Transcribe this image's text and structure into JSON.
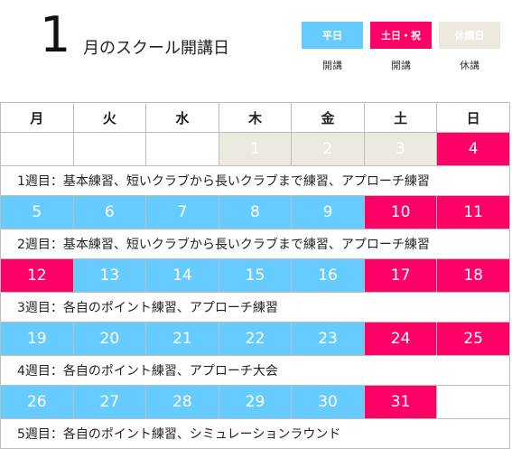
{
  "header": {
    "month": "1",
    "title": "月のスクール開講日"
  },
  "legend": [
    {
      "label": "平日",
      "caption": "開講",
      "color": "#66ccff"
    },
    {
      "label": "土日・祝",
      "caption": "開講",
      "color": "#ff0066"
    },
    {
      "label": "休講日",
      "caption": "休講",
      "color": "#ece9e0"
    }
  ],
  "calendar": {
    "weekdays": [
      "月",
      "火",
      "水",
      "木",
      "金",
      "土",
      "日"
    ],
    "weeks": [
      {
        "days": [
          {
            "d": "",
            "t": "empty"
          },
          {
            "d": "",
            "t": "empty"
          },
          {
            "d": "",
            "t": "empty"
          },
          {
            "d": "1",
            "t": "closed"
          },
          {
            "d": "2",
            "t": "closed"
          },
          {
            "d": "3",
            "t": "closed"
          },
          {
            "d": "4",
            "t": "pink"
          }
        ],
        "note": "1週目：基本練習、短いクラブから長いクラブまで練習、アプローチ練習"
      },
      {
        "days": [
          {
            "d": "5",
            "t": "blue"
          },
          {
            "d": "6",
            "t": "blue"
          },
          {
            "d": "7",
            "t": "blue"
          },
          {
            "d": "8",
            "t": "blue"
          },
          {
            "d": "9",
            "t": "blue"
          },
          {
            "d": "10",
            "t": "pink"
          },
          {
            "d": "11",
            "t": "pink"
          }
        ],
        "note": "2週目：基本練習、短いクラブから長いクラブまで練習、アプローチ練習"
      },
      {
        "days": [
          {
            "d": "12",
            "t": "pink"
          },
          {
            "d": "13",
            "t": "blue"
          },
          {
            "d": "14",
            "t": "blue"
          },
          {
            "d": "15",
            "t": "blue"
          },
          {
            "d": "16",
            "t": "blue"
          },
          {
            "d": "17",
            "t": "pink"
          },
          {
            "d": "18",
            "t": "pink"
          }
        ],
        "note": "3週目：各自のポイント練習、アプローチ練習"
      },
      {
        "days": [
          {
            "d": "19",
            "t": "blue"
          },
          {
            "d": "20",
            "t": "blue"
          },
          {
            "d": "21",
            "t": "blue"
          },
          {
            "d": "22",
            "t": "blue"
          },
          {
            "d": "23",
            "t": "blue"
          },
          {
            "d": "24",
            "t": "pink"
          },
          {
            "d": "25",
            "t": "pink"
          }
        ],
        "note": "4週目：各自のポイント練習、アプローチ大会"
      },
      {
        "days": [
          {
            "d": "26",
            "t": "blue"
          },
          {
            "d": "27",
            "t": "blue"
          },
          {
            "d": "28",
            "t": "blue"
          },
          {
            "d": "29",
            "t": "blue"
          },
          {
            "d": "30",
            "t": "blue"
          },
          {
            "d": "31",
            "t": "pink"
          },
          {
            "d": "",
            "t": "empty"
          }
        ],
        "note": "5週目：各自のポイント練習、シミュレーションラウンド"
      }
    ]
  }
}
